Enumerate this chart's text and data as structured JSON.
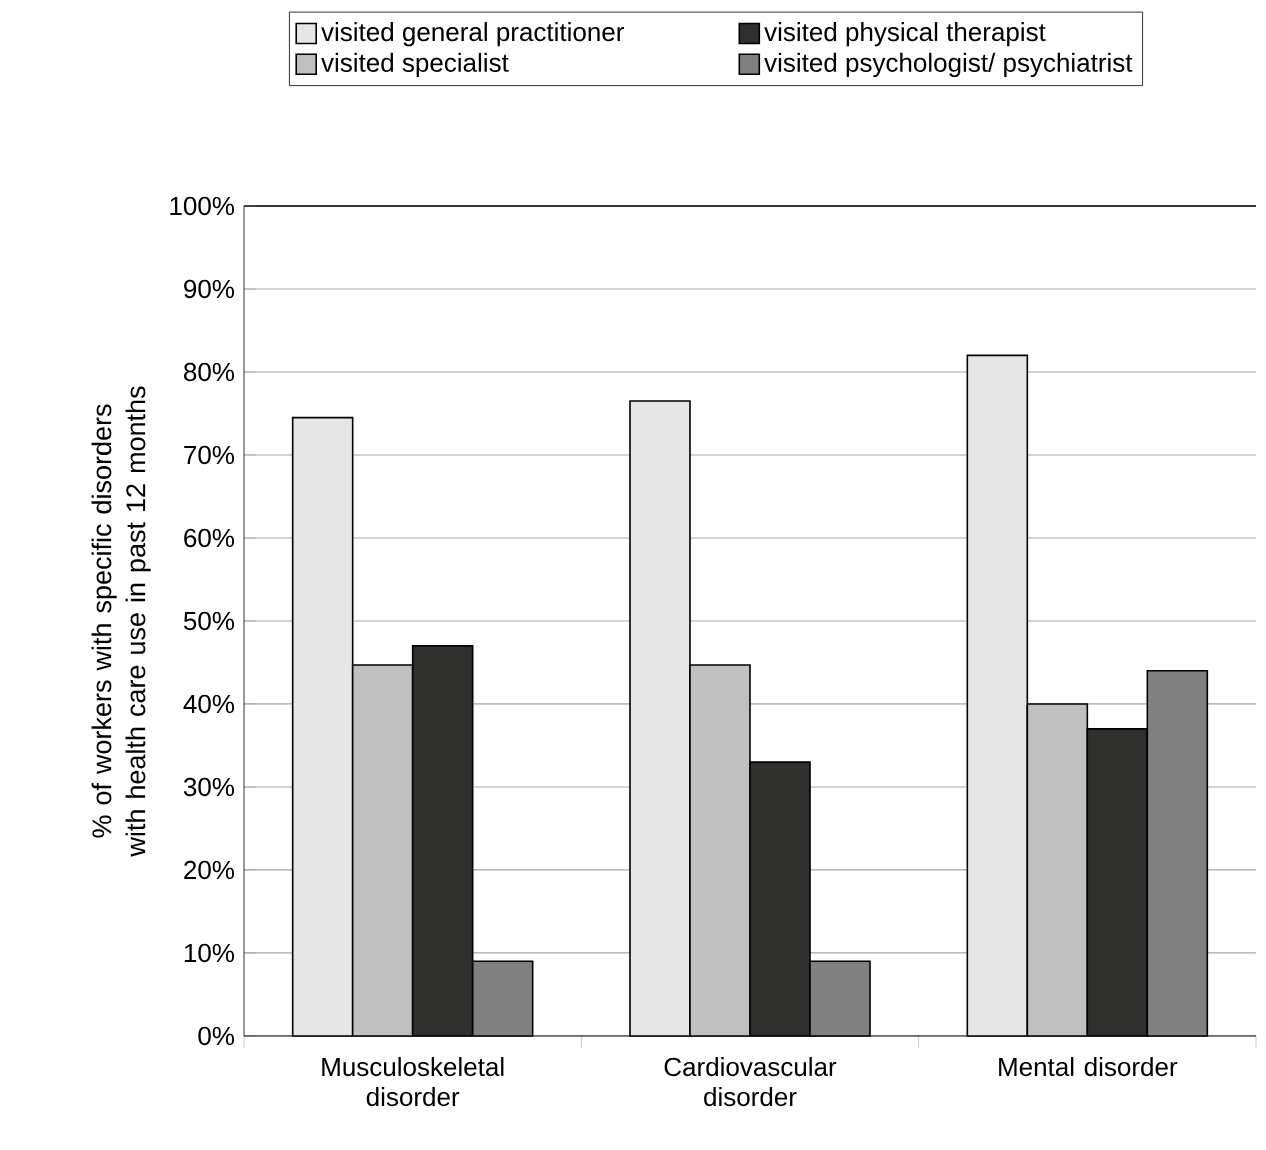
{
  "chart_data": {
    "type": "bar",
    "ylabel": "% of workers with specific disorders with health care use in past 12 months",
    "categories": [
      "Musculoskeletal disorder",
      "Cardiovascular disorder",
      "Mental disorder"
    ],
    "series": [
      {
        "name": "visited general practitioner",
        "color": "#e6e6e6",
        "values": [
          74.5,
          76.5,
          82
        ]
      },
      {
        "name": "visited specialist",
        "color": "#c0c0c0",
        "values": [
          44.7,
          44.7,
          40
        ]
      },
      {
        "name": "visited physical therapist",
        "color": "#2f2f2d",
        "values": [
          47,
          33,
          37
        ]
      },
      {
        "name": "visited psychologist/ psychiatrist",
        "color": "#808080",
        "values": [
          9,
          9,
          44
        ]
      }
    ],
    "ylim": [
      0,
      100
    ],
    "yticks": [
      {
        "value": 0,
        "label": "0%"
      },
      {
        "value": 10,
        "label": "10%"
      },
      {
        "value": 20,
        "label": "20%"
      },
      {
        "value": 30,
        "label": "30%"
      },
      {
        "value": 40,
        "label": "40%"
      },
      {
        "value": 50,
        "label": "50%"
      },
      {
        "value": 60,
        "label": "60%"
      },
      {
        "value": 70,
        "label": "70%"
      },
      {
        "value": 80,
        "label": "80%"
      },
      {
        "value": 90,
        "label": "90%"
      },
      {
        "value": 100,
        "label": "100%"
      }
    ],
    "grid": "y",
    "legend": "top"
  }
}
